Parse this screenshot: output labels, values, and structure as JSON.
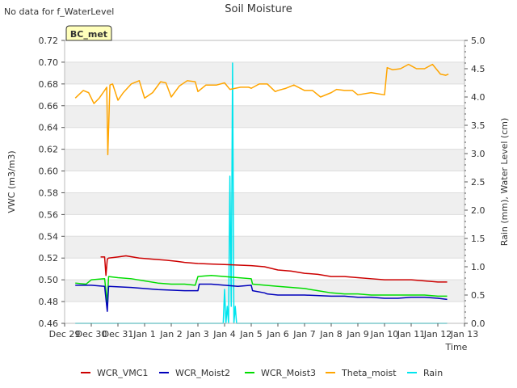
{
  "chart_data": {
    "type": "line",
    "title": "Soil Moisture",
    "no_data_note": "No data for f_WaterLevel",
    "station_label": "BC_met",
    "xlabel": "Time",
    "ylabel_left": "VWC (m3/m3)",
    "ylabel_right": "Rain (mm), Water Level (cm)",
    "x_range_days": [
      0,
      15
    ],
    "x_tick_labels": [
      "Dec 29",
      "Dec 30",
      "Dec 31",
      "Jan 1",
      "Jan 2",
      "Jan 3",
      "Jan 4",
      "Jan 5",
      "Jan 6",
      "Jan 7",
      "Jan 8",
      "Jan 9",
      "Jan 10",
      "Jan 11",
      "Jan 12",
      "Jan 13"
    ],
    "ylim_left": [
      0.46,
      0.72
    ],
    "yticks_left": [
      "0.46",
      "0.48",
      "0.50",
      "0.52",
      "0.54",
      "0.56",
      "0.58",
      "0.60",
      "0.62",
      "0.64",
      "0.66",
      "0.68",
      "0.70",
      "0.72"
    ],
    "ylim_right": [
      0.0,
      5.0
    ],
    "yticks_right": [
      "0.0",
      "0.5",
      "1.0",
      "1.5",
      "2.0",
      "2.5",
      "3.0",
      "3.5",
      "4.0",
      "4.5",
      "5.0"
    ],
    "series": [
      {
        "name": "WCR_VMC1",
        "axis": "left",
        "color": "#cc0000",
        "x": [
          1.35,
          1.5,
          1.55,
          1.6,
          1.65,
          2.0,
          2.3,
          2.8,
          3.3,
          3.8,
          4.2,
          4.5,
          5.0,
          6.0,
          7.0,
          7.5,
          8.0,
          8.5,
          9.0,
          9.5,
          10.0,
          10.5,
          11.0,
          11.5,
          12.0,
          12.5,
          13.0,
          13.5,
          14.0,
          14.35
        ],
        "y": [
          0.521,
          0.521,
          0.504,
          0.519,
          0.52,
          0.521,
          0.522,
          0.52,
          0.519,
          0.518,
          0.517,
          0.516,
          0.515,
          0.514,
          0.513,
          0.512,
          0.509,
          0.508,
          0.506,
          0.505,
          0.503,
          0.503,
          0.502,
          0.501,
          0.5,
          0.5,
          0.5,
          0.499,
          0.498,
          0.498
        ]
      },
      {
        "name": "WCR_Moist2",
        "axis": "left",
        "color": "#0000bb",
        "x": [
          0.4,
          1.0,
          1.5,
          1.6,
          1.65,
          2.5,
          3.5,
          4.5,
          5.0,
          5.05,
          5.5,
          6.0,
          6.5,
          7.0,
          7.05,
          7.5,
          7.6,
          8.0,
          9.0,
          10.0,
          10.5,
          11.0,
          11.5,
          12.0,
          12.5,
          13.0,
          13.5,
          14.0,
          14.35
        ],
        "y": [
          0.495,
          0.495,
          0.494,
          0.471,
          0.494,
          0.493,
          0.491,
          0.49,
          0.49,
          0.496,
          0.496,
          0.495,
          0.494,
          0.495,
          0.49,
          0.488,
          0.487,
          0.486,
          0.486,
          0.485,
          0.485,
          0.484,
          0.484,
          0.483,
          0.483,
          0.484,
          0.484,
          0.483,
          0.482
        ]
      },
      {
        "name": "WCR_Moist3",
        "axis": "left",
        "color": "#00dd00",
        "x": [
          0.4,
          0.8,
          1.0,
          1.5,
          1.6,
          1.65,
          2.0,
          2.5,
          3.0,
          3.5,
          4.0,
          4.5,
          4.9,
          5.0,
          5.5,
          6.0,
          6.5,
          7.0,
          7.05,
          8.0,
          9.0,
          9.5,
          10.0,
          10.5,
          11.0,
          11.5,
          12.0,
          12.5,
          13.0,
          13.5,
          14.0,
          14.35
        ],
        "y": [
          0.497,
          0.496,
          0.5,
          0.501,
          0.479,
          0.503,
          0.502,
          0.501,
          0.499,
          0.497,
          0.496,
          0.496,
          0.495,
          0.503,
          0.504,
          0.503,
          0.502,
          0.501,
          0.496,
          0.494,
          0.492,
          0.49,
          0.488,
          0.487,
          0.487,
          0.486,
          0.486,
          0.486,
          0.486,
          0.486,
          0.485,
          0.485
        ]
      },
      {
        "name": "Theta_moist",
        "axis": "left",
        "color": "#ffa500",
        "x": [
          0.4,
          0.7,
          0.9,
          1.1,
          1.3,
          1.5,
          1.58,
          1.62,
          1.7,
          1.8,
          2.0,
          2.2,
          2.5,
          2.8,
          3.0,
          3.3,
          3.6,
          3.8,
          4.0,
          4.3,
          4.6,
          4.9,
          5.0,
          5.3,
          5.7,
          6.0,
          6.2,
          6.6,
          6.9,
          7.0,
          7.3,
          7.6,
          7.9,
          8.0,
          8.3,
          8.6,
          9.0,
          9.3,
          9.6,
          10.0,
          10.2,
          10.5,
          10.8,
          11.0,
          11.5,
          12.0,
          12.1,
          12.3,
          12.6,
          12.9,
          13.2,
          13.5,
          13.8,
          14.1,
          14.3,
          14.4
        ],
        "y": [
          0.667,
          0.674,
          0.672,
          0.662,
          0.667,
          0.674,
          0.677,
          0.615,
          0.679,
          0.68,
          0.665,
          0.672,
          0.68,
          0.683,
          0.667,
          0.672,
          0.682,
          0.681,
          0.668,
          0.678,
          0.683,
          0.682,
          0.673,
          0.679,
          0.679,
          0.681,
          0.675,
          0.677,
          0.677,
          0.676,
          0.68,
          0.68,
          0.673,
          0.674,
          0.676,
          0.679,
          0.674,
          0.674,
          0.668,
          0.672,
          0.675,
          0.674,
          0.674,
          0.67,
          0.672,
          0.67,
          0.695,
          0.693,
          0.694,
          0.698,
          0.694,
          0.694,
          0.698,
          0.689,
          0.688,
          0.689
        ]
      },
      {
        "name": "Rain",
        "axis": "right",
        "color": "#00e5ee",
        "x": [
          0.4,
          5.95,
          6.0,
          6.05,
          6.1,
          6.15,
          6.2,
          6.25,
          6.3,
          6.35,
          6.4,
          6.45,
          6.5,
          6.55,
          6.6,
          6.65,
          6.7,
          6.75,
          6.8,
          6.85,
          6.9,
          6.95,
          7.0,
          7.05,
          7.1,
          7.15,
          7.2,
          7.25,
          7.3,
          7.35,
          7.4,
          7.45,
          7.5,
          7.55,
          7.6,
          7.65,
          7.7,
          7.75,
          7.8,
          7.85,
          7.9,
          7.95,
          8.0,
          8.05,
          8.1,
          8.15,
          8.2,
          8.25,
          8.3,
          8.35,
          8.4,
          8.45,
          8.5,
          8.55,
          8.6,
          8.65,
          8.7,
          8.75,
          8.8,
          8.85,
          8.9,
          8.95,
          9.0,
          9.05,
          9.1,
          9.15,
          9.2,
          9.25,
          9.3,
          9.35,
          9.4,
          9.45,
          9.5,
          9.55,
          9.6,
          9.65,
          9.7,
          9.75,
          9.8,
          9.85,
          9.9,
          9.95,
          10.0,
          10.05,
          10.1,
          10.15,
          10.2,
          10.25,
          10.3,
          10.35,
          10.4,
          10.45,
          10.5,
          10.55,
          10.6,
          10.65,
          10.7,
          10.75,
          10.8,
          10.85,
          10.9,
          10.95,
          11.0,
          11.05,
          11.1,
          11.15,
          11.2,
          11.25,
          11.3,
          11.35,
          11.4,
          11.45,
          11.5,
          11.55,
          11.6,
          11.65,
          11.7,
          11.75,
          11.8,
          11.85,
          11.9,
          11.95,
          12.0,
          12.05,
          12.1,
          12.15,
          12.2,
          14.35
        ],
        "y": [
          0.0,
          0.0,
          0.6,
          0.0,
          0.3,
          0.0,
          2.6,
          0.3,
          4.6,
          0.0,
          0.3,
          0.0,
          0.0,
          0.0,
          0.0,
          0.0,
          0.0,
          0.0,
          0.0,
          0.0,
          0.0,
          0.0,
          0.0,
          0.0,
          0.0,
          0.0,
          0.0,
          0.0,
          0.0,
          0.0,
          0.0,
          0.0,
          0.0,
          0.0,
          0.0,
          0.0,
          0.0,
          0.0,
          0.0,
          0.0,
          0.0,
          0.0,
          0.0,
          0.0,
          0.0,
          0.0,
          0.0,
          0.0,
          0.0,
          0.0,
          0.0,
          0.0,
          0.0,
          0.0,
          0.0,
          0.0,
          0.0,
          0.0,
          0.0,
          0.0,
          0.0,
          0.0,
          0.0,
          0.0,
          0.0,
          0.0,
          0.0,
          0.0,
          0.0,
          0.0,
          0.0,
          0.0,
          0.0,
          0.0,
          0.0,
          0.0,
          0.0,
          0.0,
          0.0,
          0.0,
          0.0,
          0.0,
          0.0,
          0.0,
          0.0,
          0.0,
          0.0,
          0.0,
          0.0,
          0.0,
          0.0,
          0.0,
          0.0,
          0.0,
          0.0,
          0.0,
          0.0,
          0.0,
          0.0,
          0.0,
          0.0,
          0.0,
          0.0,
          0.0,
          0.0,
          0.0,
          0.0,
          0.0,
          0.0,
          0.0,
          0.0,
          0.0,
          0.0,
          0.0,
          0.0,
          0.0,
          0.0,
          0.0,
          0.0,
          0.0,
          0.0,
          0.0,
          0.0,
          0.0,
          0.0,
          0.0,
          0.0,
          0.0
        ]
      }
    ],
    "legend_placement": "bottom-center"
  }
}
